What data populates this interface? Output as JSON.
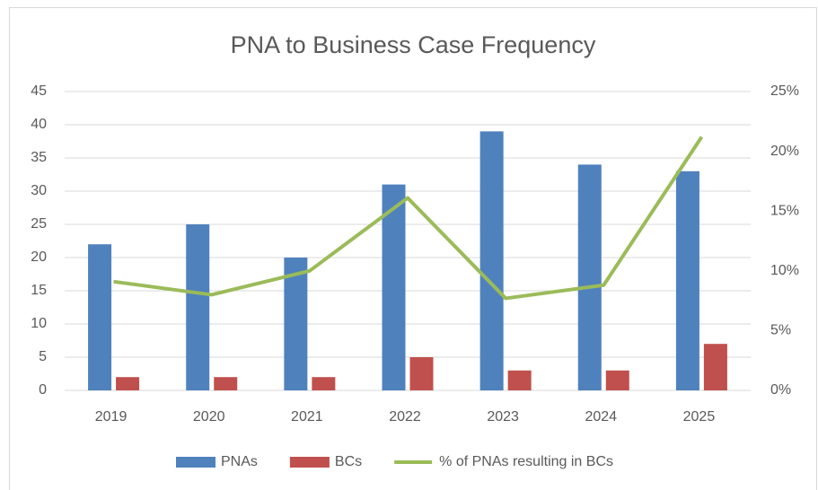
{
  "chart_data": {
    "type": "bar",
    "title": "PNA to Business Case Frequency",
    "categories": [
      "2019",
      "2020",
      "2021",
      "2022",
      "2023",
      "2024",
      "2025"
    ],
    "series": [
      {
        "name": "PNAs",
        "color": "#4f81bd",
        "values": [
          22,
          25,
          20,
          31,
          39,
          34,
          33
        ]
      },
      {
        "name": "BCs",
        "color": "#c0504d",
        "values": [
          2,
          2,
          2,
          5,
          3,
          3,
          7
        ]
      },
      {
        "name": "% of PNAs resulting in BCs",
        "color": "#9bbb59",
        "type": "line",
        "axis": "y2",
        "values": [
          9.1,
          8,
          10,
          16.1,
          7.7,
          8.8,
          21.2
        ]
      }
    ],
    "ylim": [
      0,
      45
    ],
    "yticks": [
      0,
      5,
      10,
      15,
      20,
      25,
      30,
      35,
      40,
      45
    ],
    "y2lim": [
      0,
      25
    ],
    "y2ticks": [
      {
        "value": 0,
        "label": "0%"
      },
      {
        "value": 5,
        "label": "5%"
      },
      {
        "value": 10,
        "label": "10%"
      },
      {
        "value": 15,
        "label": "15%"
      },
      {
        "value": 20,
        "label": "20%"
      },
      {
        "value": 25,
        "label": "25%"
      }
    ],
    "grid": true,
    "legend": "bottom"
  }
}
